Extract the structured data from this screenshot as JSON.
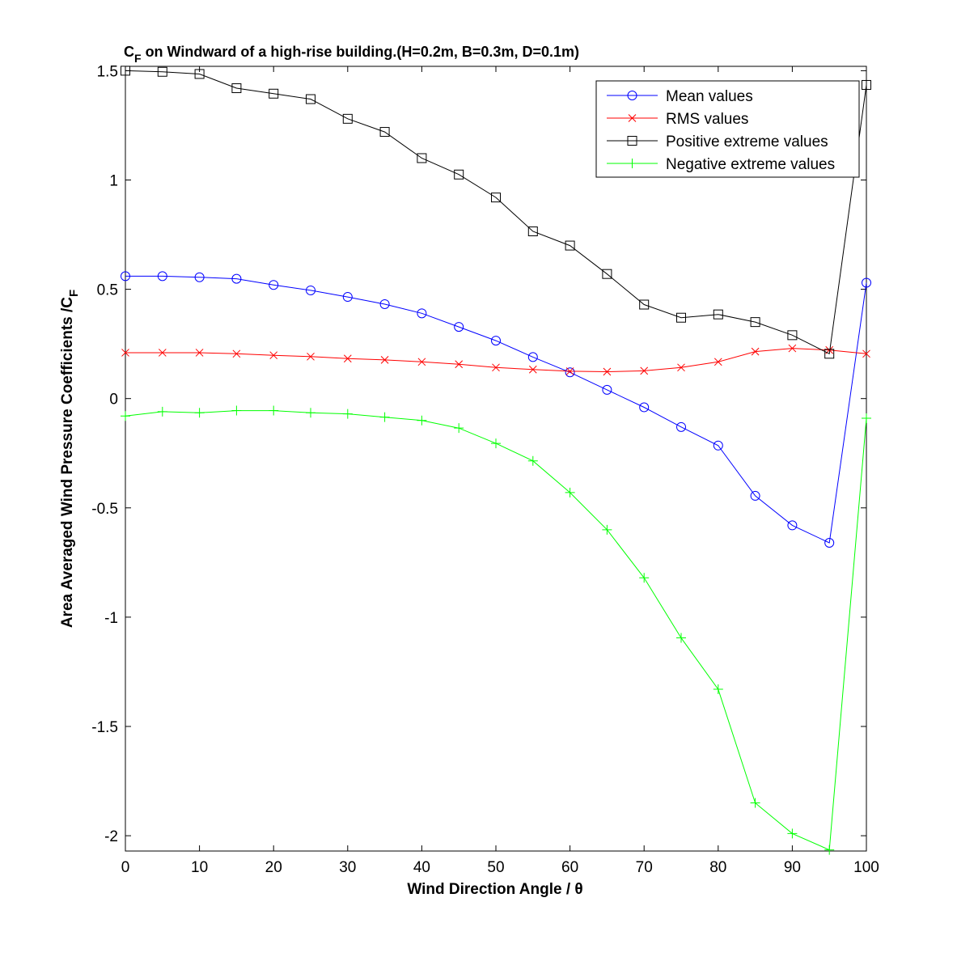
{
  "chart_data": {
    "type": "line",
    "title_main": "C",
    "title_sub": "F",
    "title_rest": " on Windward of a high-rise building.(H=0.2m, B=0.3m, D=0.1m)",
    "xlabel": "Wind Direction Angle  / θ",
    "ylabel_main": "Area Averaged Wind Pressure Coefficients /C",
    "ylabel_sub": "F",
    "xlim": [
      0,
      100
    ],
    "ylim": [
      -2.07,
      1.52
    ],
    "xticks": [
      0,
      10,
      20,
      30,
      40,
      50,
      60,
      70,
      80,
      90,
      100
    ],
    "yticks": [
      -2,
      -1.5,
      -1,
      -0.5,
      0,
      0.5,
      1,
      1.5
    ],
    "grid": false,
    "legend_position": "top-right",
    "x": [
      0,
      5,
      10,
      15,
      20,
      25,
      30,
      35,
      40,
      45,
      50,
      55,
      60,
      65,
      70,
      75,
      80,
      85,
      90,
      95,
      100
    ],
    "series": [
      {
        "name": "Mean values",
        "color": "#0000ff",
        "marker": "circle",
        "values": [
          0.56,
          0.56,
          0.555,
          0.548,
          0.52,
          0.495,
          0.465,
          0.432,
          0.39,
          0.328,
          0.265,
          0.19,
          0.12,
          0.04,
          -0.04,
          -0.13,
          -0.215,
          -0.445,
          -0.58,
          -0.66,
          0.53
        ]
      },
      {
        "name": "RMS values",
        "color": "#ff0000",
        "marker": "x",
        "values": [
          0.21,
          0.21,
          0.21,
          0.205,
          0.198,
          0.192,
          0.183,
          0.177,
          0.168,
          0.157,
          0.142,
          0.133,
          0.125,
          0.123,
          0.127,
          0.142,
          0.168,
          0.215,
          0.23,
          0.222,
          0.205
        ]
      },
      {
        "name": "Positive extreme values",
        "color": "#000000",
        "marker": "square",
        "values": [
          1.5,
          1.495,
          1.485,
          1.42,
          1.395,
          1.37,
          1.28,
          1.22,
          1.1,
          1.025,
          0.92,
          0.765,
          0.7,
          0.57,
          0.43,
          0.37,
          0.385,
          0.35,
          0.29,
          0.205,
          1.435
        ]
      },
      {
        "name": "Negative extreme values",
        "color": "#00ff00",
        "marker": "plus",
        "values": [
          -0.08,
          -0.06,
          -0.065,
          -0.055,
          -0.055,
          -0.065,
          -0.07,
          -0.085,
          -0.1,
          -0.135,
          -0.205,
          -0.285,
          -0.43,
          -0.6,
          -0.82,
          -1.095,
          -1.33,
          -1.85,
          -1.99,
          -2.065,
          -0.09
        ]
      }
    ]
  }
}
